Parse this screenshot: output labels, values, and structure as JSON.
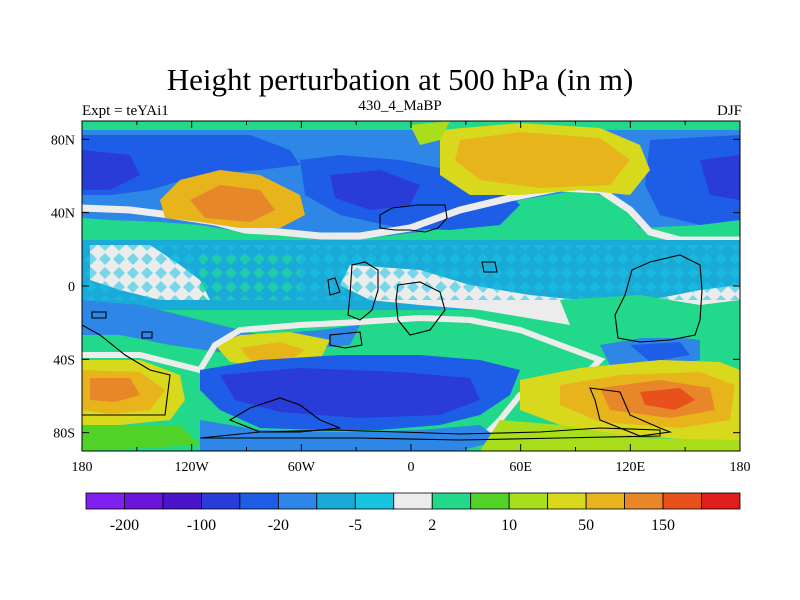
{
  "title": "Height perturbation at 500 hPa (in m)",
  "subtitle_left": "Expt = teYAi1",
  "subtitle_center": "430_4_MaBP",
  "subtitle_right": "DJF",
  "lon_ticks": [
    {
      "value": -180,
      "label": "180"
    },
    {
      "value": -120,
      "label": "120W"
    },
    {
      "value": -60,
      "label": "60W"
    },
    {
      "value": 0,
      "label": "0"
    },
    {
      "value": 60,
      "label": "60E"
    },
    {
      "value": 120,
      "label": "120E"
    },
    {
      "value": 180,
      "label": "180"
    }
  ],
  "lat_ticks": [
    {
      "value": 80,
      "label": "80N"
    },
    {
      "value": 40,
      "label": "40N"
    },
    {
      "value": 0,
      "label": "0"
    },
    {
      "value": -40,
      "label": "40S"
    },
    {
      "value": -80,
      "label": "80S"
    }
  ],
  "colorbar": {
    "colors": [
      "#7f1ff0",
      "#6a14dc",
      "#4a14c8",
      "#2a3cd8",
      "#1e5ee6",
      "#2e86e6",
      "#1aaad8",
      "#18c4e2",
      "#ececec",
      "#22d88a",
      "#50d228",
      "#a8de1c",
      "#d8d81c",
      "#e8b41c",
      "#e8862a",
      "#e8501c",
      "#e01c1c"
    ],
    "labels": [
      {
        "after_box": 1,
        "text": "-200"
      },
      {
        "after_box": 3,
        "text": "-100"
      },
      {
        "after_box": 5,
        "text": "-20"
      },
      {
        "after_box": 7,
        "text": "-5"
      },
      {
        "after_box": 9,
        "text": "2"
      },
      {
        "after_box": 11,
        "text": "10"
      },
      {
        "after_box": 13,
        "text": "50"
      },
      {
        "after_box": 15,
        "text": "150"
      }
    ]
  },
  "field_regions": [
    {
      "name": "arctic-low-west-pacific",
      "lon": -178,
      "lat": 65,
      "rlon": 38,
      "rlat": 22,
      "level": 3
    },
    {
      "name": "north-atlantic-low",
      "lon": -40,
      "lat": 55,
      "rlon": 45,
      "rlat": 18,
      "level": 3
    },
    {
      "name": "north-pacific-high",
      "lon": -105,
      "lat": 45,
      "rlon": 35,
      "rlat": 18,
      "level": 13
    },
    {
      "name": "eurasian-high",
      "lon": 80,
      "lat": 65,
      "rlon": 45,
      "rlat": 20,
      "level": 13
    },
    {
      "name": "southern-ocean-low",
      "lon": -25,
      "lat": -62,
      "rlon": 55,
      "rlat": 16,
      "level": 3
    },
    {
      "name": "south-pacific-high",
      "lon": -165,
      "lat": -55,
      "rlon": 30,
      "rlat": 16,
      "level": 13
    },
    {
      "name": "south-indian-high",
      "lon": 135,
      "lat": -60,
      "rlon": 35,
      "rlat": 14,
      "level": 14
    },
    {
      "name": "subtropical-south-high",
      "lon": -60,
      "lat": -35,
      "rlon": 30,
      "rlat": 8,
      "level": 12
    }
  ]
}
